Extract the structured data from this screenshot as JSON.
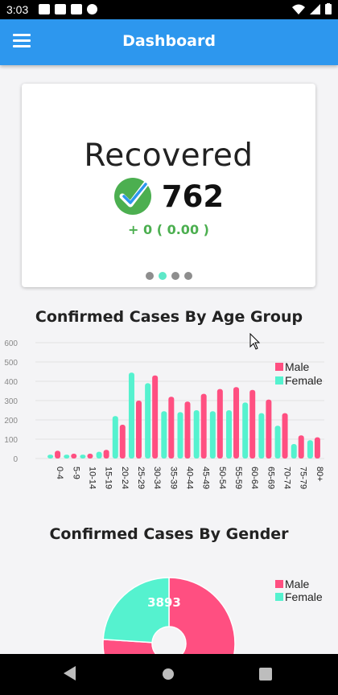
{
  "status_bar": {
    "time": "3:03"
  },
  "app_bar": {
    "title": "Dashboard",
    "menu_icon": "hamburger-menu-icon"
  },
  "summary_card": {
    "label": "Recovered",
    "count": "762",
    "delta": "+ 0 ( 0.00 )",
    "icon": "check-circle-icon",
    "carousel_page": 2,
    "carousel_pages": 4
  },
  "age_section": {
    "title": "Confirmed Cases By Age Group"
  },
  "gender_section": {
    "title": "Confirmed Cases By Gender"
  },
  "colors": {
    "male": "#ff4f81",
    "female": "#55f2cf",
    "accent": "#2d97ee",
    "positive": "#4caf50"
  },
  "chart_data": [
    {
      "type": "bar",
      "title": "Confirmed Cases By Age Group",
      "categories": [
        "0-4",
        "5-9",
        "10-14",
        "15-19",
        "20-24",
        "25-29",
        "30-34",
        "35-39",
        "40-44",
        "45-49",
        "50-54",
        "55-59",
        "60-64",
        "65-69",
        "70-74",
        "75-79",
        "80+"
      ],
      "series": [
        {
          "name": "Female",
          "values": [
            20,
            20,
            20,
            35,
            220,
            445,
            390,
            245,
            240,
            250,
            245,
            250,
            290,
            235,
            170,
            75,
            95
          ]
        },
        {
          "name": "Male",
          "values": [
            40,
            25,
            25,
            45,
            175,
            300,
            430,
            320,
            295,
            335,
            360,
            370,
            355,
            305,
            235,
            120,
            110
          ]
        }
      ],
      "ylim": [
        0,
        600
      ],
      "yticks": [
        0,
        100,
        200,
        300,
        400,
        500,
        600
      ],
      "grid": true,
      "legend": "top-right"
    },
    {
      "type": "pie",
      "title": "Confirmed Cases By Gender",
      "slices": [
        {
          "name": "Male",
          "value": 3893
        },
        {
          "name": "Female",
          "value": 1230
        }
      ],
      "data_labels": [
        "3893"
      ],
      "legend": "top-right"
    }
  ]
}
